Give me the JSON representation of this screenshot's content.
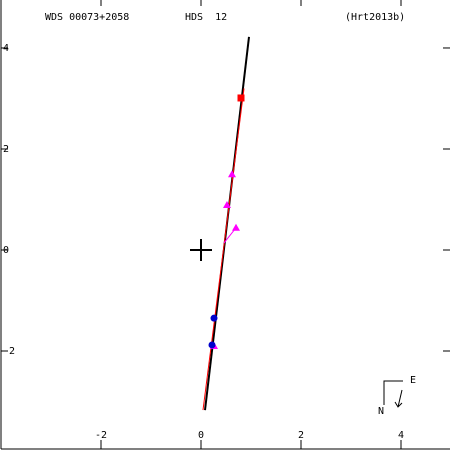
{
  "chart_data": {
    "type": "scatter",
    "title": "WDS 00073+2058",
    "subtitle": "HDS  12",
    "reference": "(Hrt2013b)",
    "xlim": [
      -4.02,
      4.98
    ],
    "ylim": [
      -3.96,
      4.95
    ],
    "xticks": [
      -2,
      0,
      2,
      4
    ],
    "yticks": [
      -2,
      0,
      2,
      4
    ],
    "compass": {
      "east": "E",
      "north": "N"
    },
    "series": [
      {
        "mark": "line",
        "color": "#000000",
        "x": [
          0.08,
          0.96
        ],
        "values": [
          -3.17,
          4.22
        ]
      },
      {
        "mark": "line",
        "color": "#ff0000",
        "x": [
          0.04,
          0.86
        ],
        "values": [
          -3.17,
          3.2
        ]
      },
      {
        "mark": "line",
        "color": "#ff00ff",
        "x": [
          0.7,
          0.46
        ],
        "values": [
          0.44,
          0.14
        ]
      },
      {
        "mark": "square",
        "color": "#ff0000",
        "x": [
          0.8
        ],
        "values": [
          3.01
        ]
      },
      {
        "mark": "triangle",
        "color": "#ff00ff",
        "x": [
          0.62,
          0.52,
          0.7,
          0.26
        ],
        "values": [
          1.5,
          0.89,
          0.44,
          -1.9
        ]
      },
      {
        "mark": "circle",
        "color": "#0000cc",
        "x": [
          0.26,
          0.22
        ],
        "values": [
          -1.35,
          -1.88
        ]
      }
    ]
  }
}
